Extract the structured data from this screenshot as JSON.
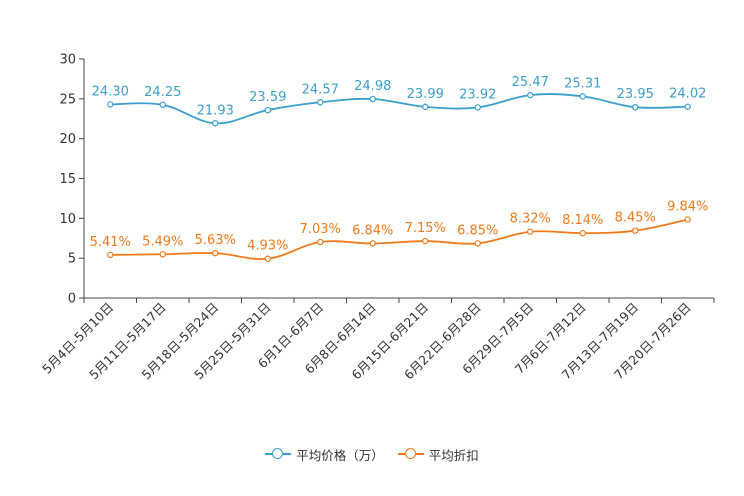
{
  "colors": {
    "price": "#3a9fcc",
    "discount": "#f07a1b",
    "axis": "#444444"
  },
  "legend": {
    "price_label": "平均价格（万）",
    "discount_label": "平均折扣"
  },
  "chart_data": {
    "type": "line",
    "title": "",
    "xlabel": "",
    "ylabel": "",
    "ylim": [
      0,
      30
    ],
    "yticks": [
      0,
      5,
      10,
      15,
      20,
      25,
      30
    ],
    "categories": [
      "5月4日-5月10日",
      "5月11日-5月17日",
      "5月18日-5月24日",
      "5月25日-5月31日",
      "6月1日-6月7日",
      "6月8日-6月14日",
      "6月15日-6月21日",
      "6月22日-6月28日",
      "6月29日-7月5日",
      "7月6日-7月12日",
      "7月13日-7月19日",
      "7月20日-7月26日"
    ],
    "series": [
      {
        "name": "平均价格（万）",
        "values": [
          24.3,
          24.25,
          21.93,
          23.59,
          24.57,
          24.98,
          23.99,
          23.92,
          25.47,
          25.31,
          23.95,
          24.02
        ],
        "labels": [
          "24.30",
          "24.25",
          "21.93",
          "23.59",
          "24.57",
          "24.98",
          "23.99",
          "23.92",
          "25.47",
          "25.31",
          "23.95",
          "24.02"
        ]
      },
      {
        "name": "平均折扣",
        "values": [
          5.41,
          5.49,
          5.63,
          4.93,
          7.03,
          6.84,
          7.15,
          6.85,
          8.32,
          8.14,
          8.45,
          9.84
        ],
        "labels": [
          "5.41%",
          "5.49%",
          "5.63%",
          "4.93%",
          "7.03%",
          "6.84%",
          "7.15%",
          "6.85%",
          "8.32%",
          "8.14%",
          "8.45%",
          "9.84%"
        ]
      }
    ],
    "legend_position": "bottom-center"
  }
}
